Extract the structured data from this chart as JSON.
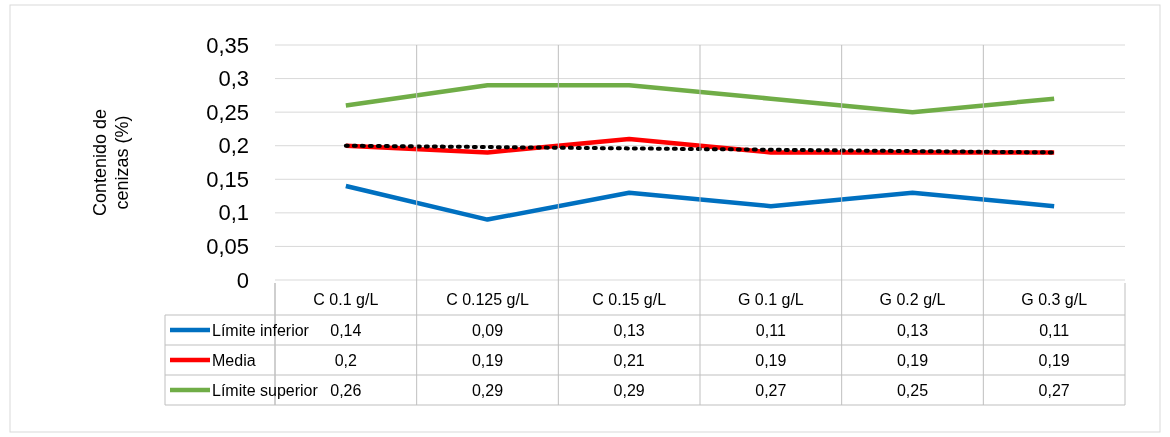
{
  "chart_data": {
    "type": "line",
    "ylabel": "Contenido de cenizas (%)",
    "categories": [
      "C 0.1 g/L",
      "C 0.125 g/L",
      "C 0.15 g/L",
      "G 0.1 g/L",
      "G 0.2 g/L",
      "G 0.3 g/L"
    ],
    "ylim": [
      0,
      0.35
    ],
    "yticks": [
      {
        "value": 0,
        "label": "0"
      },
      {
        "value": 0.05,
        "label": "0,05"
      },
      {
        "value": 0.1,
        "label": "0,1"
      },
      {
        "value": 0.15,
        "label": "0,15"
      },
      {
        "value": 0.2,
        "label": "0,2"
      },
      {
        "value": 0.25,
        "label": "0,25"
      },
      {
        "value": 0.3,
        "label": "0,3"
      },
      {
        "value": 0.35,
        "label": "0,35"
      }
    ],
    "grid": "y",
    "legend": "bottom",
    "series": [
      {
        "name": "Límite inferior",
        "color": "#0070c0",
        "values": [
          0.14,
          0.09,
          0.13,
          0.11,
          0.13,
          0.11
        ],
        "value_labels": [
          "0,14",
          "0,09",
          "0,13",
          "0,11",
          "0,13",
          "0,11"
        ]
      },
      {
        "name": "Media",
        "color": "#ff0000",
        "values": [
          0.2,
          0.19,
          0.21,
          0.19,
          0.19,
          0.19
        ],
        "value_labels": [
          "0,2",
          "0,19",
          "0,21",
          "0,19",
          "0,19",
          "0,19"
        ]
      },
      {
        "name": "Límite superior",
        "color": "#70ad47",
        "values": [
          0.26,
          0.29,
          0.29,
          0.27,
          0.25,
          0.27
        ],
        "value_labels": [
          "0,26",
          "0,29",
          "0,29",
          "0,27",
          "0,25",
          "0,27"
        ]
      },
      {
        "type": "line",
        "color": "#000000",
        "line_style": "dotted",
        "values": [
          0.2,
          0.198,
          0.196,
          0.194,
          0.192,
          0.19
        ]
      }
    ]
  }
}
